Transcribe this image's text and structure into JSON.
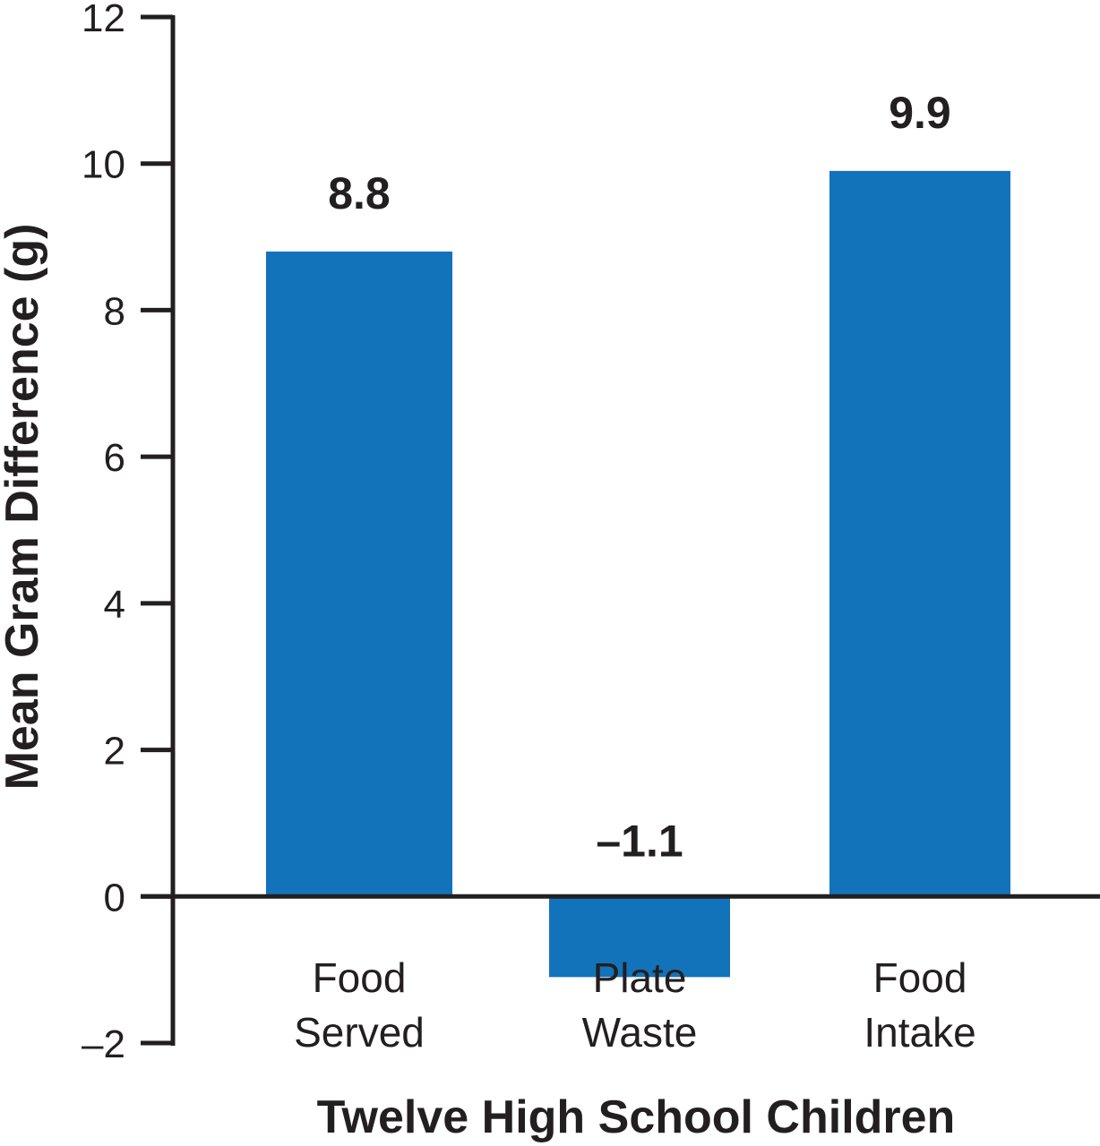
{
  "chart_data": {
    "type": "bar",
    "title": "",
    "xlabel": "Twelve High School Children",
    "ylabel": "Mean Gram Difference (g)",
    "categories": [
      [
        "Food",
        "Served"
      ],
      [
        "Plate",
        "Waste"
      ],
      [
        "Food",
        "Intake"
      ]
    ],
    "values": [
      8.8,
      -1.1,
      9.9
    ],
    "data_labels": [
      "8.8",
      "–1.1",
      "9.9"
    ],
    "ylim": [
      -2,
      12
    ],
    "yticks": [
      -2,
      0,
      2,
      4,
      6,
      8,
      10,
      12
    ],
    "ytick_labels": [
      "–2",
      "0",
      "2",
      "4",
      "6",
      "8",
      "10",
      "12"
    ],
    "grid": false,
    "legend": "none",
    "colors": {
      "bar": "#1273bb",
      "axis": "#231f20",
      "text": "#231f20"
    }
  }
}
